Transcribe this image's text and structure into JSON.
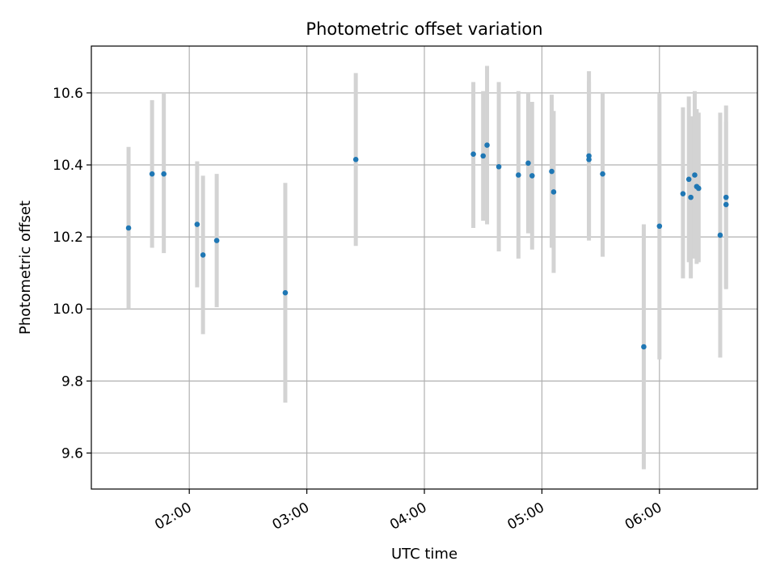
{
  "chart_data": {
    "type": "scatter",
    "title": "Photometric offset variation",
    "xlabel": "UTC time",
    "ylabel": "Photometric offset",
    "x_axis": "time (UTC, hours)",
    "xlim": [
      "01:10",
      "06:50"
    ],
    "ylim": [
      9.5,
      10.73
    ],
    "x_ticks": [
      {
        "label": "02:00",
        "value": "02:00"
      },
      {
        "label": "03:00",
        "value": "03:00"
      },
      {
        "label": "04:00",
        "value": "04:00"
      },
      {
        "label": "05:00",
        "value": "05:00"
      },
      {
        "label": "06:00",
        "value": "06:00"
      }
    ],
    "y_ticks": [
      {
        "label": "9.6",
        "value": 9.6
      },
      {
        "label": "9.8",
        "value": 9.8
      },
      {
        "label": "10.0",
        "value": 10.0
      },
      {
        "label": "10.2",
        "value": 10.2
      },
      {
        "label": "10.4",
        "value": 10.4
      },
      {
        "label": "10.6",
        "value": 10.6
      }
    ],
    "grid": true,
    "marker_color": "#1f77b4",
    "errorbar_color": "#d3d3d3",
    "points": [
      {
        "x": "01:29",
        "y": 10.225,
        "ylo": 10.0,
        "yhi": 10.45
      },
      {
        "x": "01:41",
        "y": 10.375,
        "ylo": 10.17,
        "yhi": 10.58
      },
      {
        "x": "01:47",
        "y": 10.375,
        "ylo": 10.155,
        "yhi": 10.6
      },
      {
        "x": "02:04",
        "y": 10.235,
        "ylo": 10.06,
        "yhi": 10.41
      },
      {
        "x": "02:07",
        "y": 10.15,
        "ylo": 9.93,
        "yhi": 10.37
      },
      {
        "x": "02:14",
        "y": 10.19,
        "ylo": 10.005,
        "yhi": 10.375
      },
      {
        "x": "02:49",
        "y": 10.045,
        "ylo": 9.74,
        "yhi": 10.35
      },
      {
        "x": "03:25",
        "y": 10.415,
        "ylo": 10.175,
        "yhi": 10.655
      },
      {
        "x": "04:25",
        "y": 10.43,
        "ylo": 10.225,
        "yhi": 10.63
      },
      {
        "x": "04:30",
        "y": 10.425,
        "ylo": 10.245,
        "yhi": 10.605
      },
      {
        "x": "04:32",
        "y": 10.455,
        "ylo": 10.235,
        "yhi": 10.675
      },
      {
        "x": "04:38",
        "y": 10.395,
        "ylo": 10.16,
        "yhi": 10.63
      },
      {
        "x": "04:48",
        "y": 10.372,
        "ylo": 10.14,
        "yhi": 10.605
      },
      {
        "x": "04:53",
        "y": 10.405,
        "ylo": 10.21,
        "yhi": 10.6
      },
      {
        "x": "04:55",
        "y": 10.37,
        "ylo": 10.165,
        "yhi": 10.575
      },
      {
        "x": "05:05",
        "y": 10.382,
        "ylo": 10.17,
        "yhi": 10.595
      },
      {
        "x": "05:06",
        "y": 10.325,
        "ylo": 10.1,
        "yhi": 10.55
      },
      {
        "x": "05:24",
        "y": 10.425,
        "ylo": 10.19,
        "yhi": 10.66
      },
      {
        "x": "05:24",
        "y": 10.415,
        "ylo": 10.2,
        "yhi": 10.63
      },
      {
        "x": "05:31",
        "y": 10.375,
        "ylo": 10.145,
        "yhi": 10.6
      },
      {
        "x": "05:52",
        "y": 9.895,
        "ylo": 9.555,
        "yhi": 10.235
      },
      {
        "x": "06:00",
        "y": 10.23,
        "ylo": 9.86,
        "yhi": 10.6
      },
      {
        "x": "06:12",
        "y": 10.32,
        "ylo": 10.085,
        "yhi": 10.56
      },
      {
        "x": "06:15",
        "y": 10.36,
        "ylo": 10.13,
        "yhi": 10.59
      },
      {
        "x": "06:16",
        "y": 10.31,
        "ylo": 10.085,
        "yhi": 10.535
      },
      {
        "x": "06:18",
        "y": 10.372,
        "ylo": 10.14,
        "yhi": 10.605
      },
      {
        "x": "06:19",
        "y": 10.34,
        "ylo": 10.125,
        "yhi": 10.555
      },
      {
        "x": "06:20",
        "y": 10.335,
        "ylo": 10.13,
        "yhi": 10.545
      },
      {
        "x": "06:31",
        "y": 10.205,
        "ylo": 9.865,
        "yhi": 10.545
      },
      {
        "x": "06:34",
        "y": 10.31,
        "ylo": 10.06,
        "yhi": 10.565
      },
      {
        "x": "06:34",
        "y": 10.29,
        "ylo": 10.055,
        "yhi": 10.52
      }
    ]
  }
}
